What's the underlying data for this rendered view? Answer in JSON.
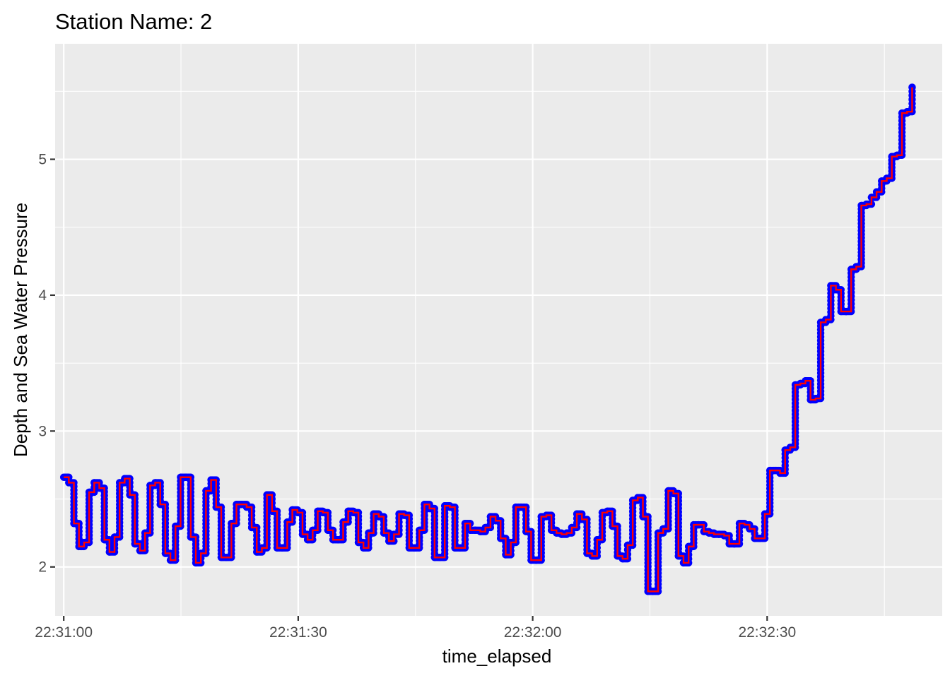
{
  "chart_data": {
    "type": "line",
    "title": "Station Name: 2",
    "xlabel": "time_elapsed",
    "ylabel": "Depth and Sea Water Pressure",
    "x_tick_labels": [
      "22:31:00",
      "22:31:30",
      "22:32:00",
      "22:32:30"
    ],
    "x_tick_seconds": [
      0,
      30,
      60,
      90
    ],
    "y_ticks": [
      2,
      3,
      4,
      5
    ],
    "y_tick_labels": [
      "2",
      "3",
      "4",
      "5"
    ],
    "xlim_seconds": [
      -1.1,
      112.4
    ],
    "ylim": [
      1.64,
      5.85
    ],
    "x_unit": "seconds after 22:31:00",
    "step_seconds": 0.65,
    "grid": true,
    "legend": "none",
    "colors": {
      "panel_background": "#ebebeb",
      "grid": "#ffffff",
      "points": "#0000ff",
      "step_line": "#ff0000"
    },
    "series": [
      {
        "values": [
          2.66,
          2.62,
          2.32,
          2.15,
          2.18,
          2.55,
          2.62,
          2.58,
          2.2,
          2.11,
          2.22,
          2.62,
          2.65,
          2.53,
          2.17,
          2.12,
          2.25,
          2.6,
          2.62,
          2.46,
          2.1,
          2.05,
          2.3,
          2.66,
          2.66,
          2.22,
          2.03,
          2.1,
          2.56,
          2.64,
          2.44,
          2.07,
          2.07,
          2.32,
          2.46,
          2.46,
          2.44,
          2.29,
          2.11,
          2.14,
          2.53,
          2.41,
          2.14,
          2.14,
          2.33,
          2.42,
          2.4,
          2.24,
          2.2,
          2.27,
          2.41,
          2.4,
          2.27,
          2.2,
          2.2,
          2.33,
          2.41,
          2.4,
          2.18,
          2.14,
          2.25,
          2.39,
          2.37,
          2.25,
          2.19,
          2.24,
          2.39,
          2.38,
          2.14,
          2.14,
          2.27,
          2.46,
          2.43,
          2.07,
          2.07,
          2.45,
          2.44,
          2.14,
          2.14,
          2.32,
          2.27,
          2.27,
          2.26,
          2.29,
          2.37,
          2.34,
          2.21,
          2.09,
          2.18,
          2.44,
          2.44,
          2.26,
          2.05,
          2.05,
          2.37,
          2.38,
          2.27,
          2.25,
          2.24,
          2.25,
          2.29,
          2.39,
          2.35,
          2.1,
          2.08,
          2.2,
          2.4,
          2.41,
          2.3,
          2.08,
          2.06,
          2.16,
          2.49,
          2.51,
          2.37,
          1.82,
          1.82,
          2.25,
          2.28,
          2.56,
          2.54,
          2.08,
          2.03,
          2.15,
          2.31,
          2.31,
          2.26,
          2.25,
          2.24,
          2.24,
          2.23,
          2.17,
          2.17,
          2.32,
          2.31,
          2.28,
          2.21,
          2.21,
          2.39,
          2.71,
          2.71,
          2.69,
          2.86,
          2.88,
          3.34,
          3.35,
          3.37,
          3.23,
          3.24,
          3.8,
          3.82,
          4.07,
          4.04,
          3.88,
          3.88,
          4.19,
          4.21,
          4.66,
          4.67,
          4.72,
          4.76,
          4.84,
          4.86,
          5.02,
          5.03,
          5.34,
          5.35,
          5.53
        ]
      }
    ]
  }
}
